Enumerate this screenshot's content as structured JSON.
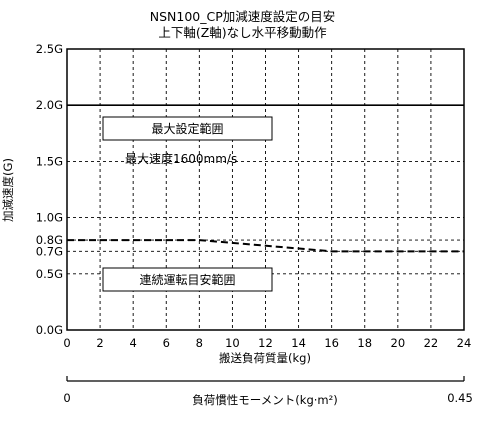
{
  "chart_data": {
    "type": "line",
    "title": "NSN100_CP加減速度設定の目安",
    "subtitle": "上下軸(Z軸)なし水平移動動作",
    "xlabel": "搬送負荷質量(kg)",
    "ylabel": "加減速度(G)",
    "xlim": [
      0,
      24
    ],
    "ylim": [
      0,
      2.5
    ],
    "x_ticks": [
      "0",
      "2",
      "4",
      "6",
      "8",
      "10",
      "12",
      "14",
      "16",
      "18",
      "20",
      "22",
      "24"
    ],
    "y_ticks": [
      {
        "value": 0,
        "label": "0.0G"
      },
      {
        "value": 0.5,
        "label": "0.5G"
      },
      {
        "value": 0.7,
        "label": "0.7G"
      },
      {
        "value": 0.8,
        "label": "0.8G"
      },
      {
        "value": 1.0,
        "label": "1.0G"
      },
      {
        "value": 1.5,
        "label": "1.5G"
      },
      {
        "value": 2.0,
        "label": "2.0G"
      },
      {
        "value": 2.5,
        "label": "2.5G"
      }
    ],
    "grid": true,
    "series": [
      {
        "name": "",
        "style": "solid",
        "x": [
          0,
          24
        ],
        "y": [
          2.0,
          2.0
        ]
      },
      {
        "name": "",
        "style": "dashed",
        "x": [
          0,
          8,
          16,
          24
        ],
        "y": [
          0.8,
          0.8,
          0.7,
          0.7
        ]
      }
    ],
    "annotations": {
      "max_range_box": "最大設定範囲",
      "max_speed": "最大速度1600mm/s",
      "continuous_box": "連続運転目安範囲"
    },
    "secondary_axis": {
      "label": "負荷慣性モーメント(kg·m²)",
      "min_label": "0",
      "max_label": "0.45",
      "range": [
        0,
        0.45
      ]
    }
  }
}
